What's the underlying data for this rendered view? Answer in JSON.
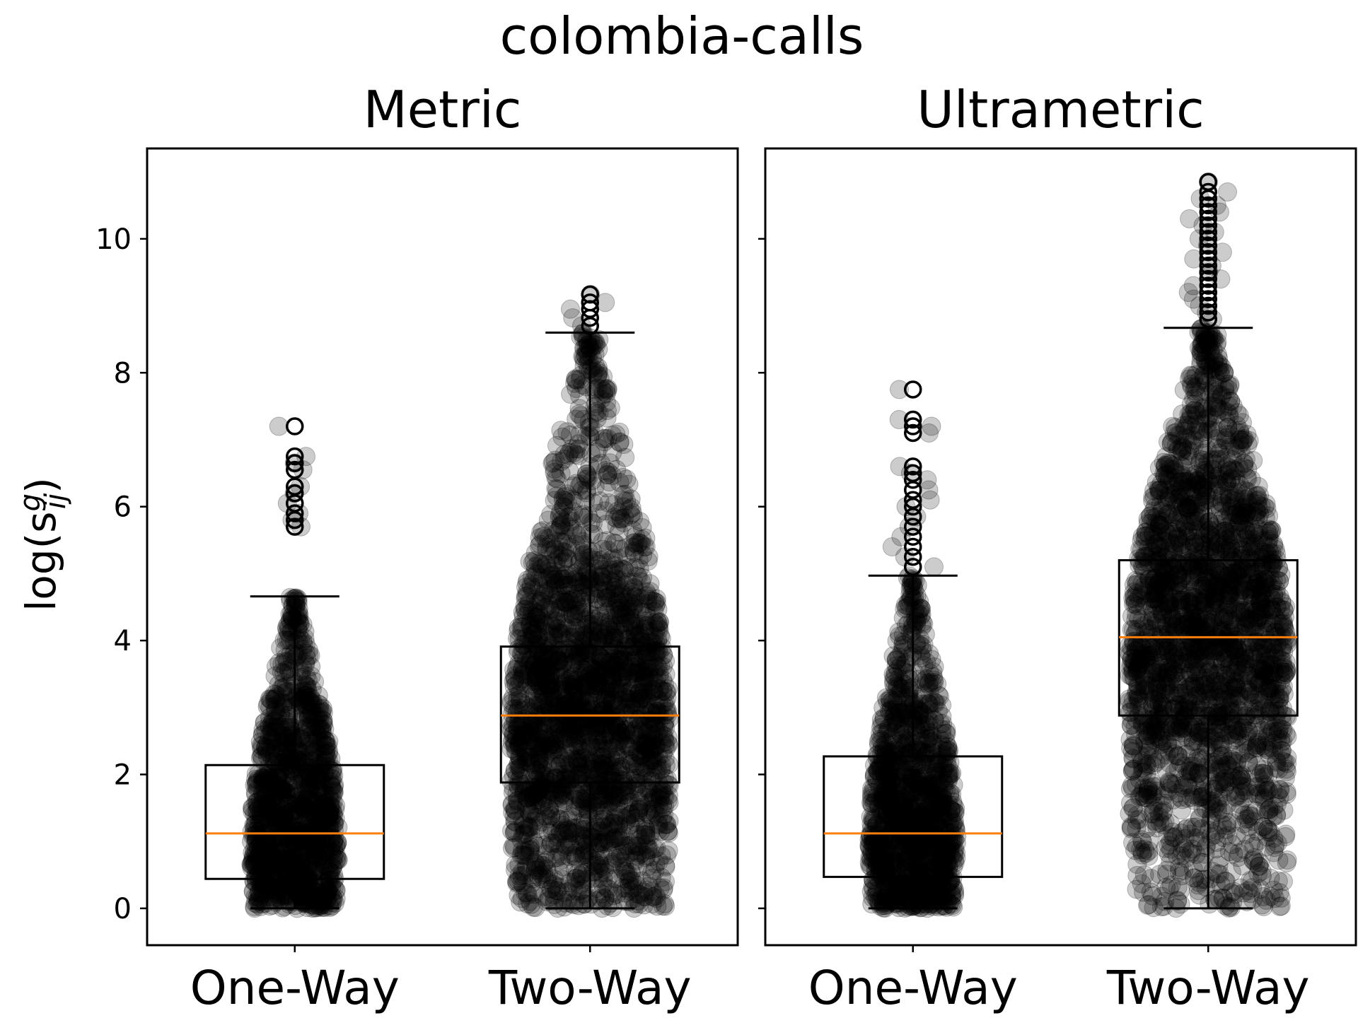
{
  "chart_data": {
    "type": "boxplot",
    "suptitle": "colombia-calls",
    "ylabel": "log(s",
    "ylabel_sup": "g",
    "ylabel_sub": "ij",
    "ylabel_close": ")",
    "ylim": [
      -0.55,
      11.35
    ],
    "yticks": [
      0,
      2,
      4,
      6,
      8,
      10
    ],
    "yticklabels": [
      "0",
      "2",
      "4",
      "6",
      "8",
      "10"
    ],
    "median_color": "#ff7f0e",
    "point_color": "#000000",
    "panels": [
      {
        "title": "Metric",
        "categories": [
          "One-Way",
          "Two-Way"
        ],
        "boxes": [
          {
            "category": "One-Way",
            "whisker_low": 0.0,
            "q1": 0.44,
            "median": 1.12,
            "q3": 2.14,
            "whisker_high": 4.66,
            "data_min": 0.0,
            "outliers": [
              7.2,
              6.75,
              6.65,
              6.55,
              6.3,
              6.2,
              6.05,
              5.9,
              5.8,
              5.7
            ]
          },
          {
            "category": "Two-Way",
            "whisker_low": 0.0,
            "q1": 1.88,
            "median": 2.88,
            "q3": 3.91,
            "whisker_high": 8.6,
            "data_min": 0.0,
            "outliers": [
              9.17,
              9.05,
              8.95,
              8.82,
              8.7
            ]
          }
        ]
      },
      {
        "title": "Ultrametric",
        "categories": [
          "One-Way",
          "Two-Way"
        ],
        "boxes": [
          {
            "category": "One-Way",
            "whisker_low": 0.0,
            "q1": 0.47,
            "median": 1.12,
            "q3": 2.27,
            "whisker_high": 4.97,
            "data_min": 0.0,
            "outliers": [
              7.75,
              7.3,
              7.2,
              7.1,
              6.6,
              6.5,
              6.4,
              6.25,
              6.1,
              6.0,
              5.85,
              5.7,
              5.55,
              5.4,
              5.25,
              5.1
            ]
          },
          {
            "category": "Two-Way",
            "whisker_low": 0.0,
            "q1": 2.88,
            "median": 4.05,
            "q3": 5.2,
            "whisker_high": 8.67,
            "data_min": 0.0,
            "outliers": [
              10.85,
              10.7,
              10.6,
              10.5,
              10.4,
              10.3,
              10.2,
              10.1,
              10.0,
              9.9,
              9.8,
              9.7,
              9.6,
              9.5,
              9.4,
              9.3,
              9.2,
              9.1,
              9.0,
              8.9,
              8.8
            ]
          }
        ]
      }
    ]
  }
}
